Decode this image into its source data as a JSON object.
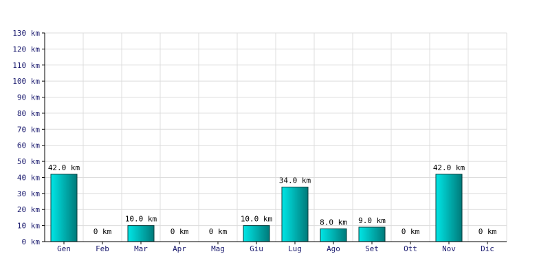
{
  "chart_data": {
    "type": "bar",
    "categories": [
      "Gen",
      "Feb",
      "Mar",
      "Apr",
      "Mag",
      "Giu",
      "Lug",
      "Ago",
      "Set",
      "Ott",
      "Nov",
      "Dic"
    ],
    "values": [
      42,
      0,
      10,
      0,
      0,
      10,
      34,
      8,
      9,
      0,
      42,
      0
    ],
    "data_labels": [
      "42.0 km",
      "0 km",
      "10.0 km",
      "0 km",
      "0 km",
      "10.0 km",
      "34.0 km",
      "8.0 km",
      "9.0 km",
      "0 km",
      "42.0 km",
      "0 km"
    ],
    "y_ticks": [
      0,
      10,
      20,
      30,
      40,
      50,
      60,
      70,
      80,
      90,
      100,
      110,
      120,
      130
    ],
    "y_tick_labels": [
      "0 km",
      "10 km",
      "20 km",
      "30 km",
      "40 km",
      "50 km",
      "60 km",
      "70 km",
      "80 km",
      "90 km",
      "100 km",
      "110 km",
      "120 km",
      "130 km"
    ],
    "ylim": [
      0,
      130
    ],
    "unit": "km",
    "grid": true,
    "colors": {
      "bar_light": "#00e6e6",
      "bar_dark": "#007a7a",
      "bar_stroke": "#003a3a",
      "grid": "#dcdcdc",
      "axis": "#000000",
      "tick_text": "#1a1a6e"
    }
  }
}
